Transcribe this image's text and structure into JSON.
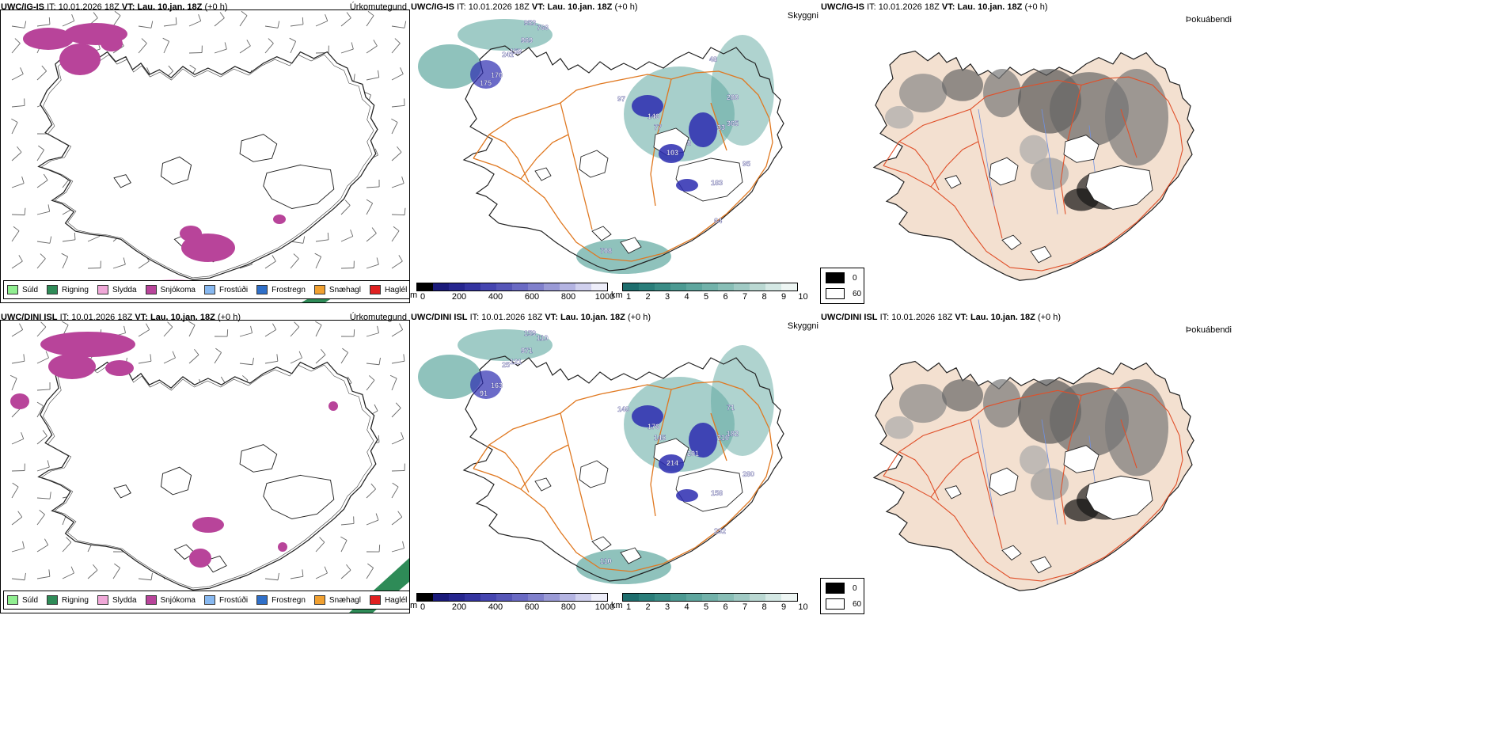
{
  "rows": [
    {
      "model": "UWC/IG-IS",
      "it_label": "IT:",
      "it_value": "10.01.2026 18Z",
      "vt_label": "VT:",
      "vt_value": "Lau. 10.jan. 18Z",
      "offset": "(+0 h)"
    },
    {
      "model": "UWC/DINI ISL",
      "it_label": "IT:",
      "it_value": "10.01.2026 18Z",
      "vt_label": "VT:",
      "vt_value": "Lau. 10.jan. 18Z",
      "offset": "(+0 h)"
    }
  ],
  "panel_titles": {
    "precip": "Úrkomutegund",
    "visibility": "Skyggni",
    "fog": "Þokuábendi"
  },
  "precip_legend": [
    {
      "label": "Súld",
      "color": "#90ee90"
    },
    {
      "label": "Rigning",
      "color": "#2e8b57"
    },
    {
      "label": "Slydda",
      "color": "#f0a8d8"
    },
    {
      "label": "Snjókoma",
      "color": "#b8449a"
    },
    {
      "label": "Frostúði",
      "color": "#87b8f0"
    },
    {
      "label": "Frostregn",
      "color": "#2f6fc8"
    },
    {
      "label": "Snæhagl",
      "color": "#f0a030"
    },
    {
      "label": "Haglél",
      "color": "#e02020"
    }
  ],
  "cloud_base_scale": {
    "unit": "m",
    "ticks": [
      "0",
      "200",
      "400",
      "600",
      "800",
      "1000"
    ],
    "colors": [
      "#000000",
      "#1a1a7a",
      "#26268f",
      "#3434a0",
      "#4545b0",
      "#5656b8",
      "#6a6ac4",
      "#8080cc",
      "#9a9ad6",
      "#b4b4e2",
      "#d0d0ee",
      "#eeeefa"
    ]
  },
  "visibility_scale": {
    "unit": "km",
    "ticks": [
      "1",
      "2",
      "3",
      "4",
      "5",
      "6",
      "7",
      "8",
      "9",
      "10"
    ],
    "colors": [
      "#1e6e6e",
      "#2a7e7a",
      "#3a8c86",
      "#4c9a92",
      "#5ea69e",
      "#72b2aa",
      "#88beb6",
      "#a0cac4",
      "#bad8d2",
      "#d4e8e4",
      "#eef6f4"
    ]
  },
  "fog_scale": {
    "ticks": [
      "0",
      "60"
    ],
    "colors": [
      "#000000",
      "#ffffff"
    ]
  },
  "map_colors": {
    "land_fog": "#f3e0d0",
    "roads_orange": "#e07820",
    "roads_red": "#e0502a",
    "rivers": "#7090e0",
    "snow": "#b8449a",
    "rain": "#2e8b57",
    "sleet": "#f0a8d8"
  },
  "cloud_labels_top": [
    "969",
    "766",
    "953",
    "241",
    "159",
    "170",
    "175",
    "97",
    "146",
    "77",
    "103",
    "8",
    "33",
    "365",
    "183",
    "95",
    "64",
    "708",
    "280",
    "48"
  ],
  "cloud_labels_bottom": [
    "971",
    "110",
    "159",
    "25",
    "121",
    "163",
    "91",
    "140",
    "176",
    "145",
    "214",
    "201",
    "210",
    "182",
    "158",
    "280",
    "232",
    "110",
    "71"
  ]
}
